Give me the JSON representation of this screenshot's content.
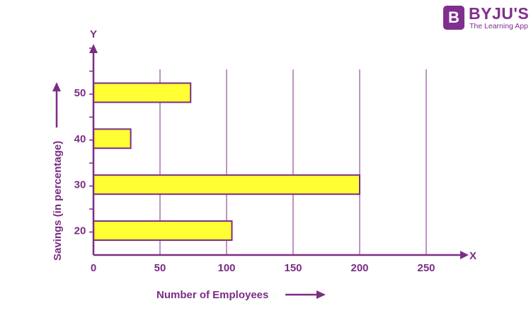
{
  "brand": {
    "name": "BYJU'S",
    "tagline": "The Learning App",
    "badge_letter": "B",
    "color": "#812f8f"
  },
  "chart_data": {
    "type": "bar",
    "orientation": "horizontal",
    "categories": [
      "20",
      "30",
      "40",
      "50"
    ],
    "values": [
      104,
      200,
      28,
      73
    ],
    "xlabel": "Number of Employees",
    "ylabel": "Savings (in percentage)",
    "x_axis_letter": "X",
    "y_axis_letter": "Y",
    "xlim": [
      0,
      250
    ],
    "xticks": [
      0,
      50,
      100,
      150,
      200,
      250
    ],
    "grid": "vertical",
    "bar_color": "#ffff33",
    "bar_edge_color": "#7b2d84",
    "axis_color": "#7b2d84"
  }
}
